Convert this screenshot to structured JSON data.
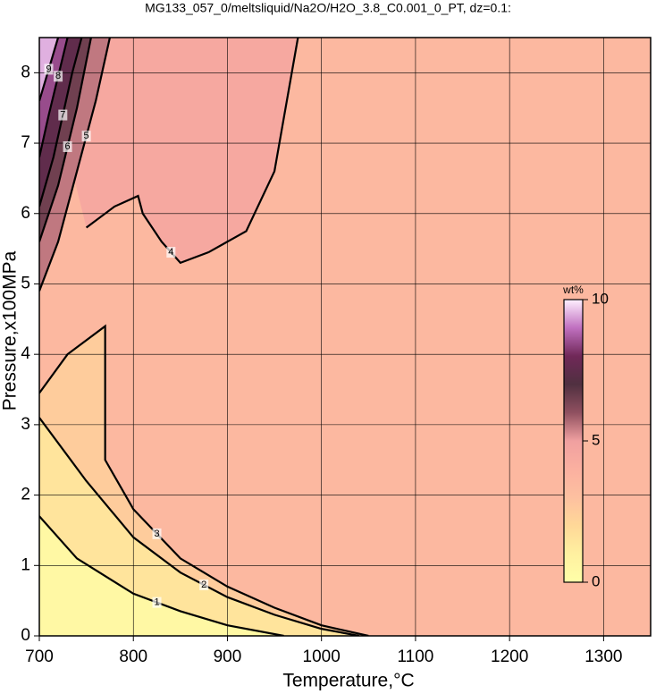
{
  "chart_data": {
    "type": "contour",
    "title": "MG133_057_0/meltsliquid/Na2O/H2O_3.8_C0.001_0_PT, dz=0.1:",
    "x_label": "Temperature,°C",
    "y_label": "Pressure,x100MPa",
    "xlim": [
      700,
      1350
    ],
    "ylim": [
      0,
      8.5
    ],
    "xticks": [
      700,
      800,
      900,
      1000,
      1100,
      1200,
      1300
    ],
    "yticks": [
      0,
      1,
      2,
      3,
      4,
      5,
      6,
      7,
      8
    ],
    "grid": true,
    "colormap": [
      [
        0,
        "#ffffa8"
      ],
      [
        1,
        "#fff0a0"
      ],
      [
        2,
        "#ffd898"
      ],
      [
        3,
        "#fdc0a0"
      ],
      [
        4,
        "#fbb0a0"
      ],
      [
        5,
        "#f0a0a0"
      ],
      [
        6,
        "#905060"
      ],
      [
        7,
        "#503040"
      ],
      [
        8,
        "#702858"
      ],
      [
        9,
        "#c070c0"
      ],
      [
        10,
        "#fff0ff"
      ]
    ],
    "colorbar": {
      "label": "wt%",
      "lim": [
        0,
        10
      ],
      "ticks": [
        0,
        5,
        10
      ]
    },
    "contours": [
      {
        "level": 1,
        "x": [
          700,
          740,
          800,
          850,
          900,
          960
        ],
        "y": [
          1.7,
          1.1,
          0.6,
          0.35,
          0.15,
          0
        ]
      },
      {
        "level": 2,
        "x": [
          700,
          750,
          800,
          850,
          900,
          950,
          1000,
          1040
        ],
        "y": [
          3.1,
          2.2,
          1.4,
          0.9,
          0.55,
          0.3,
          0.1,
          0
        ]
      },
      {
        "level": 3,
        "x": [
          700,
          730,
          770,
          770,
          800,
          850,
          900,
          950,
          1000,
          1050
        ],
        "y": [
          3.45,
          4.0,
          4.4,
          2.5,
          1.8,
          1.1,
          0.7,
          0.4,
          0.15,
          0
        ]
      },
      {
        "level": 4,
        "x": [
          750,
          780,
          805,
          810,
          830,
          850,
          880,
          920,
          950,
          975
        ],
        "y": [
          5.8,
          6.1,
          6.25,
          6.0,
          5.6,
          5.3,
          5.45,
          5.75,
          6.6,
          8.5
        ]
      },
      {
        "level": 5,
        "x": [
          700,
          720,
          740,
          760,
          775
        ],
        "y": [
          4.9,
          5.6,
          6.6,
          7.6,
          8.5
        ]
      },
      {
        "level": 6,
        "x": [
          700,
          720,
          740,
          755
        ],
        "y": [
          5.6,
          6.4,
          7.5,
          8.5
        ]
      },
      {
        "level": 7,
        "x": [
          700,
          715,
          735,
          745
        ],
        "y": [
          6.1,
          6.8,
          8.0,
          8.5
        ]
      },
      {
        "level": 8,
        "x": [
          700,
          710,
          730
        ],
        "y": [
          6.8,
          7.4,
          8.5
        ]
      },
      {
        "level": 9,
        "x": [
          700,
          720
        ],
        "y": [
          7.6,
          8.5
        ]
      }
    ]
  }
}
